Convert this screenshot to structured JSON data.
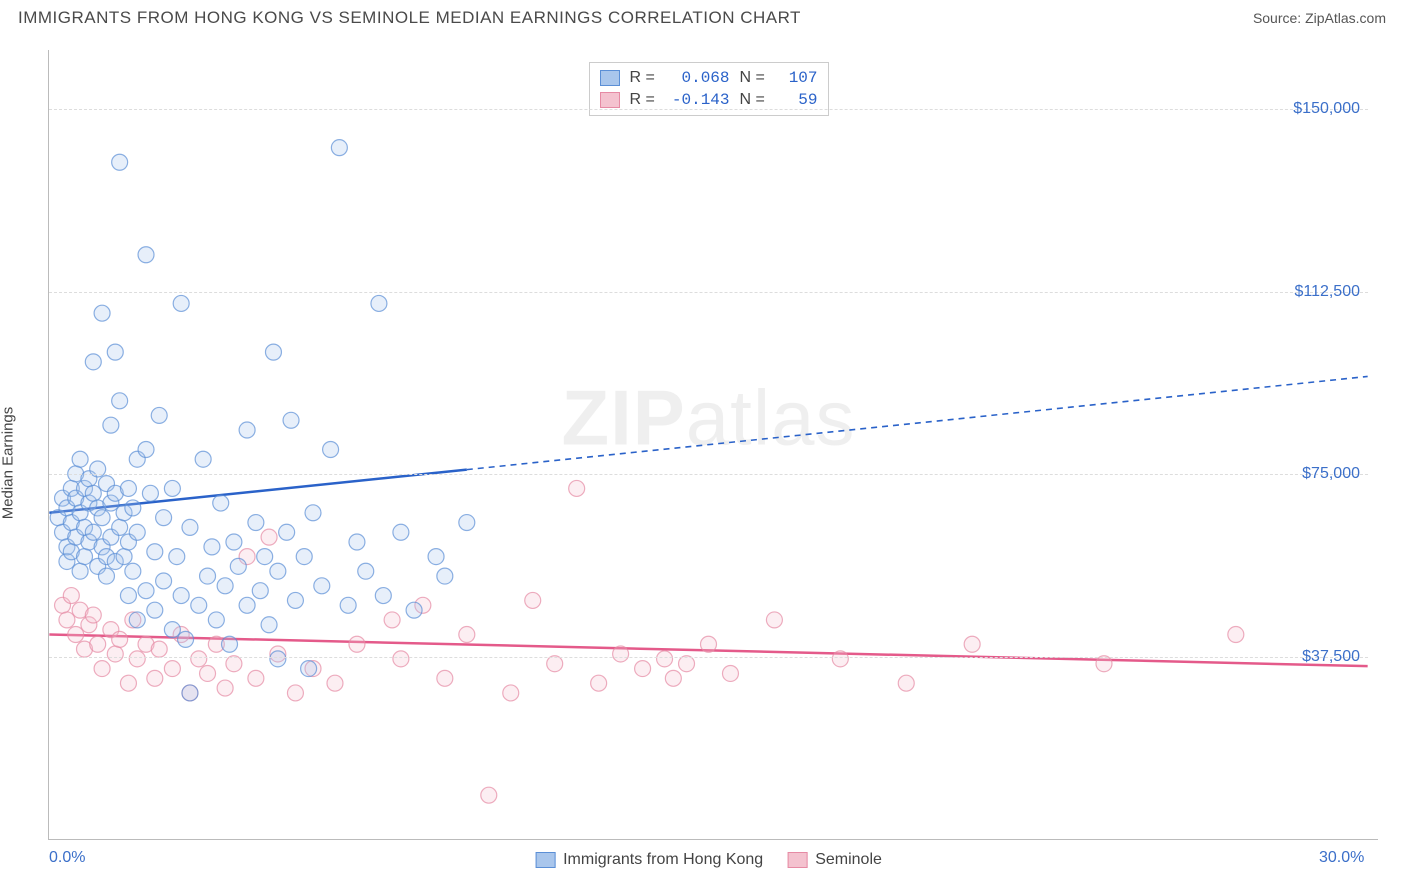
{
  "title": "IMMIGRANTS FROM HONG KONG VS SEMINOLE MEDIAN EARNINGS CORRELATION CHART",
  "source": "Source: ZipAtlas.com",
  "watermark_bold": "ZIP",
  "watermark_light": "atlas",
  "y_axis_label": "Median Earnings",
  "chart": {
    "type": "scatter",
    "x_min": 0.0,
    "x_max": 30.0,
    "y_min": 0,
    "y_max": 160000,
    "x_tick_labels": {
      "0": "0.0%",
      "30": "30.0%"
    },
    "y_ticks": [
      37500,
      75000,
      112500,
      150000
    ],
    "y_tick_labels": {
      "37500": "$37,500",
      "75000": "$75,000",
      "112500": "$112,500",
      "150000": "$150,000"
    },
    "grid_color": "#dddddd",
    "axis_color": "#bbbbbb",
    "background": "#ffffff",
    "label_color": "#3b6fc9",
    "text_color": "#444444",
    "marker_radius": 8,
    "marker_fill_opacity": 0.28,
    "marker_stroke_opacity": 0.7,
    "marker_stroke_width": 1.2
  },
  "series": {
    "a": {
      "label": "Immigrants from Hong Kong",
      "color_fill": "#a9c6ec",
      "color_stroke": "#5b8fd6",
      "line_color": "#2a62c9",
      "R": "0.068",
      "N": "107",
      "trend": {
        "y_at_x0": 67000,
        "y_at_x30": 95000,
        "solid_until_x": 9.5
      },
      "points": [
        [
          0.2,
          66000
        ],
        [
          0.3,
          63000
        ],
        [
          0.3,
          70000
        ],
        [
          0.4,
          57000
        ],
        [
          0.4,
          60000
        ],
        [
          0.4,
          68000
        ],
        [
          0.5,
          72000
        ],
        [
          0.5,
          65000
        ],
        [
          0.5,
          59000
        ],
        [
          0.6,
          75000
        ],
        [
          0.6,
          62000
        ],
        [
          0.6,
          70000
        ],
        [
          0.7,
          55000
        ],
        [
          0.7,
          67000
        ],
        [
          0.7,
          78000
        ],
        [
          0.8,
          64000
        ],
        [
          0.8,
          72000
        ],
        [
          0.8,
          58000
        ],
        [
          0.9,
          69000
        ],
        [
          0.9,
          74000
        ],
        [
          0.9,
          61000
        ],
        [
          1.0,
          63000
        ],
        [
          1.0,
          71000
        ],
        [
          1.0,
          98000
        ],
        [
          1.1,
          56000
        ],
        [
          1.1,
          68000
        ],
        [
          1.1,
          76000
        ],
        [
          1.2,
          60000
        ],
        [
          1.2,
          108000
        ],
        [
          1.2,
          66000
        ],
        [
          1.3,
          73000
        ],
        [
          1.3,
          58000
        ],
        [
          1.3,
          54000
        ],
        [
          1.4,
          69000
        ],
        [
          1.4,
          85000
        ],
        [
          1.4,
          62000
        ],
        [
          1.5,
          100000
        ],
        [
          1.5,
          57000
        ],
        [
          1.5,
          71000
        ],
        [
          1.6,
          139000
        ],
        [
          1.6,
          64000
        ],
        [
          1.6,
          90000
        ],
        [
          1.7,
          58000
        ],
        [
          1.7,
          67000
        ],
        [
          1.8,
          72000
        ],
        [
          1.8,
          50000
        ],
        [
          1.8,
          61000
        ],
        [
          1.9,
          68000
        ],
        [
          1.9,
          55000
        ],
        [
          2.0,
          78000
        ],
        [
          2.0,
          45000
        ],
        [
          2.0,
          63000
        ],
        [
          2.2,
          80000
        ],
        [
          2.2,
          51000
        ],
        [
          2.2,
          120000
        ],
        [
          2.3,
          71000
        ],
        [
          2.4,
          47000
        ],
        [
          2.4,
          59000
        ],
        [
          2.5,
          87000
        ],
        [
          2.6,
          53000
        ],
        [
          2.6,
          66000
        ],
        [
          2.8,
          43000
        ],
        [
          2.8,
          72000
        ],
        [
          2.9,
          58000
        ],
        [
          3.0,
          50000
        ],
        [
          3.0,
          110000
        ],
        [
          3.1,
          41000
        ],
        [
          3.2,
          64000
        ],
        [
          3.2,
          30000
        ],
        [
          3.4,
          48000
        ],
        [
          3.5,
          78000
        ],
        [
          3.6,
          54000
        ],
        [
          3.7,
          60000
        ],
        [
          3.8,
          45000
        ],
        [
          3.9,
          69000
        ],
        [
          4.0,
          52000
        ],
        [
          4.1,
          40000
        ],
        [
          4.2,
          61000
        ],
        [
          4.3,
          56000
        ],
        [
          4.5,
          84000
        ],
        [
          4.5,
          48000
        ],
        [
          4.7,
          65000
        ],
        [
          4.8,
          51000
        ],
        [
          4.9,
          58000
        ],
        [
          5.0,
          44000
        ],
        [
          5.1,
          100000
        ],
        [
          5.2,
          55000
        ],
        [
          5.2,
          37000
        ],
        [
          5.4,
          63000
        ],
        [
          5.5,
          86000
        ],
        [
          5.6,
          49000
        ],
        [
          5.8,
          58000
        ],
        [
          5.9,
          35000
        ],
        [
          6.0,
          67000
        ],
        [
          6.2,
          52000
        ],
        [
          6.4,
          80000
        ],
        [
          6.6,
          142000
        ],
        [
          6.8,
          48000
        ],
        [
          7.0,
          61000
        ],
        [
          7.2,
          55000
        ],
        [
          7.5,
          110000
        ],
        [
          7.6,
          50000
        ],
        [
          8.0,
          63000
        ],
        [
          8.3,
          47000
        ],
        [
          8.8,
          58000
        ],
        [
          9.0,
          54000
        ],
        [
          9.5,
          65000
        ]
      ]
    },
    "b": {
      "label": "Seminole",
      "color_fill": "#f4c2cf",
      "color_stroke": "#e68aa4",
      "line_color": "#e45a8a",
      "R": "-0.143",
      "N": "59",
      "trend": {
        "y_at_x0": 42000,
        "y_at_x30": 35500,
        "solid_until_x": 30
      },
      "points": [
        [
          0.3,
          48000
        ],
        [
          0.4,
          45000
        ],
        [
          0.5,
          50000
        ],
        [
          0.6,
          42000
        ],
        [
          0.7,
          47000
        ],
        [
          0.8,
          39000
        ],
        [
          0.9,
          44000
        ],
        [
          1.0,
          46000
        ],
        [
          1.1,
          40000
        ],
        [
          1.2,
          35000
        ],
        [
          1.4,
          43000
        ],
        [
          1.5,
          38000
        ],
        [
          1.6,
          41000
        ],
        [
          1.8,
          32000
        ],
        [
          1.9,
          45000
        ],
        [
          2.0,
          37000
        ],
        [
          2.2,
          40000
        ],
        [
          2.4,
          33000
        ],
        [
          2.5,
          39000
        ],
        [
          2.8,
          35000
        ],
        [
          3.0,
          42000
        ],
        [
          3.2,
          30000
        ],
        [
          3.4,
          37000
        ],
        [
          3.6,
          34000
        ],
        [
          3.8,
          40000
        ],
        [
          4.0,
          31000
        ],
        [
          4.2,
          36000
        ],
        [
          4.5,
          58000
        ],
        [
          4.7,
          33000
        ],
        [
          5.0,
          62000
        ],
        [
          5.2,
          38000
        ],
        [
          5.6,
          30000
        ],
        [
          6.0,
          35000
        ],
        [
          6.5,
          32000
        ],
        [
          7.0,
          40000
        ],
        [
          7.8,
          45000
        ],
        [
          8.0,
          37000
        ],
        [
          8.5,
          48000
        ],
        [
          9.0,
          33000
        ],
        [
          9.5,
          42000
        ],
        [
          10.0,
          9000
        ],
        [
          10.5,
          30000
        ],
        [
          11.0,
          49000
        ],
        [
          11.5,
          36000
        ],
        [
          12.0,
          72000
        ],
        [
          12.5,
          32000
        ],
        [
          13.0,
          38000
        ],
        [
          13.5,
          35000
        ],
        [
          14.0,
          37000
        ],
        [
          14.2,
          33000
        ],
        [
          14.5,
          36000
        ],
        [
          15.0,
          40000
        ],
        [
          15.5,
          34000
        ],
        [
          16.5,
          45000
        ],
        [
          18.0,
          37000
        ],
        [
          19.5,
          32000
        ],
        [
          21.0,
          40000
        ],
        [
          24.0,
          36000
        ],
        [
          27.0,
          42000
        ]
      ]
    }
  }
}
